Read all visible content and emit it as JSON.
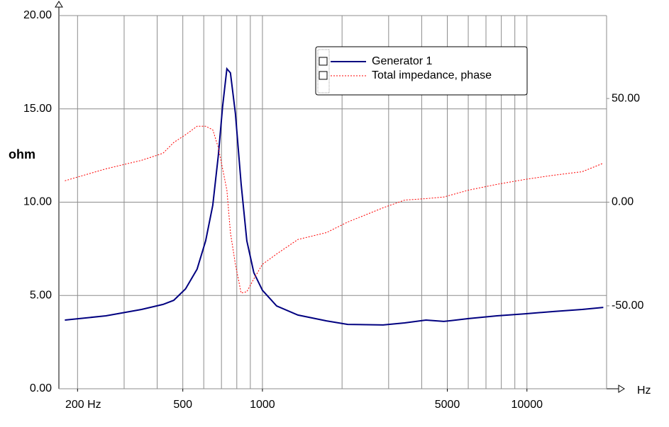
{
  "chart_data": {
    "type": "line",
    "y_label": "ohm",
    "x_label": "Hz",
    "log_x": true,
    "grid": true,
    "legend": "upper-right",
    "x": [
      179,
      256,
      349,
      421,
      462,
      512,
      566,
      610,
      649,
      681,
      707,
      734,
      757,
      790,
      831,
      873,
      928,
      1000,
      1131,
      1362,
      1745,
      2101,
      2861,
      3447,
      4150,
      4849,
      6018,
      7704,
      9862,
      12630,
      16170,
      19440
    ],
    "series": [
      {
        "name": "Generator 1",
        "color": "#000080",
        "values": [
          3.68,
          3.91,
          4.25,
          4.52,
          4.74,
          5.35,
          6.41,
          7.93,
          9.83,
          12.49,
          15.14,
          17.15,
          16.93,
          14.76,
          10.97,
          7.93,
          6.22,
          5.28,
          4.44,
          3.95,
          3.64,
          3.45,
          3.42,
          3.53,
          3.68,
          3.61,
          3.76,
          3.91,
          4.02,
          4.14,
          4.25,
          4.36
        ]
      },
      {
        "name": "Total impedance, phase",
        "color": "#ff0000",
        "axis": "y2",
        "dashed": true,
        "values": [
          10.3,
          16.1,
          20.2,
          23.6,
          28.8,
          32.5,
          36.6,
          36.6,
          34.9,
          26.4,
          16.1,
          5.8,
          -14.7,
          -30,
          -43.8,
          -43.2,
          -37,
          -30,
          -25,
          -18,
          -14.7,
          -9.6,
          -2.7,
          1.0,
          1.7,
          2.5,
          5.8,
          8.6,
          11,
          13,
          14.7,
          18.8
        ]
      }
    ],
    "xlim": [
      170,
      20000
    ],
    "xticks": [
      {
        "value": 200,
        "label": "200 Hz"
      },
      500,
      1000,
      5000,
      10000
    ],
    "xgrid": [
      200,
      300,
      400,
      500,
      600,
      700,
      800,
      900,
      1000,
      2000,
      3000,
      4000,
      5000,
      6000,
      7000,
      8000,
      9000,
      10000,
      20000
    ],
    "ylim": [
      0,
      20
    ],
    "yticks": [
      {
        "value": 0,
        "label": "0.00"
      },
      {
        "value": 5,
        "label": "5.00"
      },
      {
        "value": 10,
        "label": "10.00"
      },
      {
        "value": 15,
        "label": "15.00"
      },
      {
        "value": 20,
        "label": "20.00"
      }
    ],
    "y2lim": [
      -90,
      90
    ],
    "y2ticks": [
      {
        "value": -50,
        "label": "-50.00"
      },
      {
        "value": 0,
        "label": "0.00"
      },
      {
        "value": 50,
        "label": "50.00"
      }
    ]
  }
}
